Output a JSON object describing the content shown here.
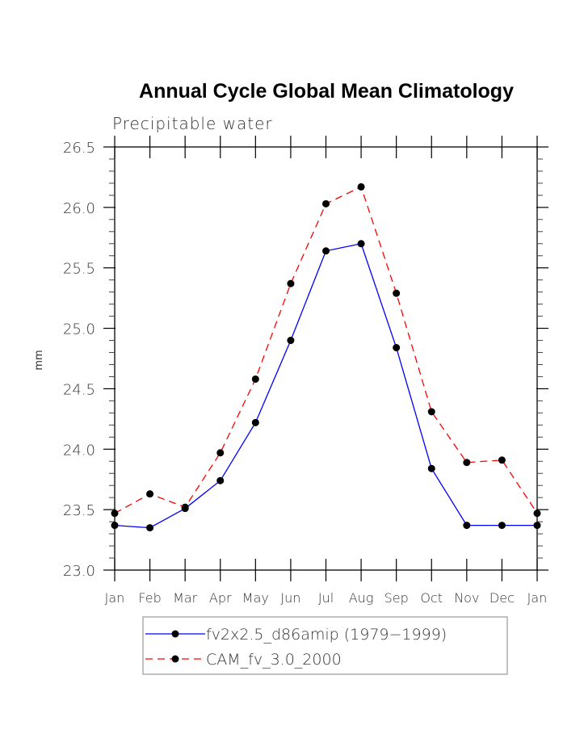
{
  "chart_data": {
    "type": "line",
    "title": "Annual Cycle Global Mean Climatology",
    "subtitle": "Precipitable water",
    "xlabel": "",
    "ylabel": "mm",
    "categories": [
      "Jan",
      "Feb",
      "Mar",
      "Apr",
      "May",
      "Jun",
      "Jul",
      "Aug",
      "Sep",
      "Oct",
      "Nov",
      "Dec",
      "Jan"
    ],
    "ylim": [
      23.0,
      26.5
    ],
    "yticks": [
      "23.0",
      "23.5",
      "24.0",
      "24.5",
      "25.0",
      "25.5",
      "26.0",
      "26.5"
    ],
    "ytick_values": [
      23.0,
      23.5,
      24.0,
      24.5,
      25.0,
      25.5,
      26.0,
      26.5
    ],
    "yminor_step": 0.1,
    "grid": false,
    "legend_position": "bottom",
    "series": [
      {
        "name": "fv2x2.5_d86amip (1979−1999)",
        "color": "#0000ff",
        "dash": "solid",
        "marker": "filled-circle",
        "values": [
          23.37,
          23.35,
          23.51,
          23.74,
          24.22,
          24.9,
          25.64,
          25.7,
          24.84,
          23.84,
          23.37,
          23.37,
          23.37
        ]
      },
      {
        "name": "CAM_fv_3.0_2000",
        "color": "#ff0000",
        "dash": "dashed",
        "marker": "filled-circle",
        "values": [
          23.47,
          23.63,
          23.52,
          23.97,
          24.58,
          25.37,
          26.03,
          26.17,
          25.29,
          24.31,
          23.89,
          23.91,
          23.47
        ]
      }
    ]
  }
}
